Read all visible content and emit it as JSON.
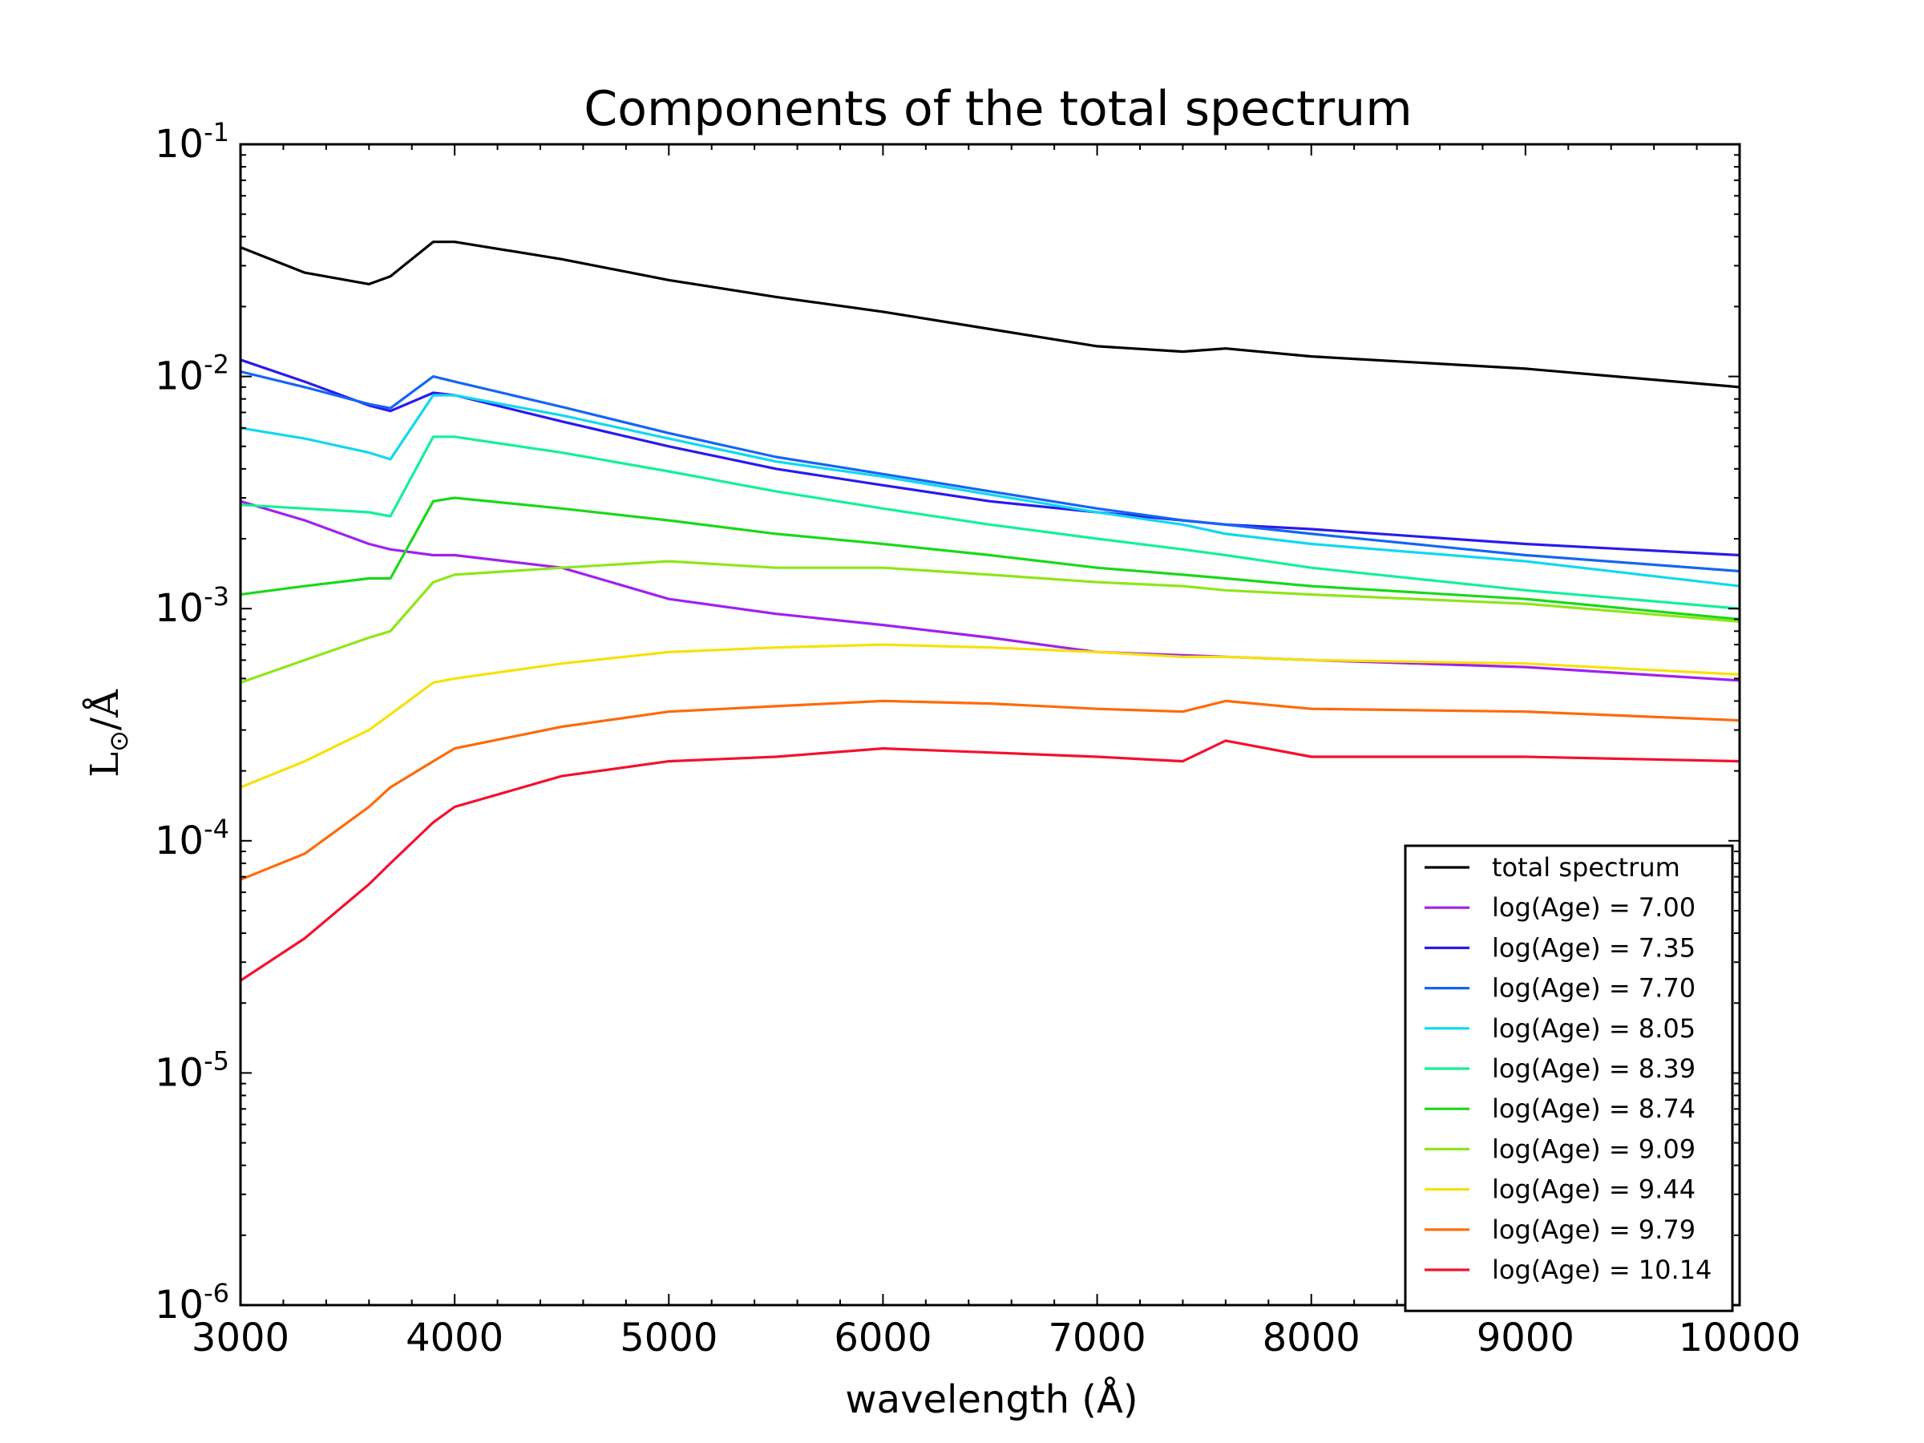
{
  "chart_data": {
    "type": "line",
    "title": "Components of the total spectrum",
    "xlabel": "wavelength (Å)",
    "ylabel": {
      "symbol": "L",
      "subscript": "⊙",
      "suffix": "/Å"
    },
    "xlim": [
      3000,
      10000
    ],
    "ylim": [
      1e-06,
      0.1
    ],
    "yscale": "log",
    "x_ticks": [
      3000,
      4000,
      5000,
      6000,
      7000,
      8000,
      9000,
      10000
    ],
    "y_ticks": [
      {
        "value": 1e-06,
        "base": "10",
        "exp": "-6"
      },
      {
        "value": 1e-05,
        "base": "10",
        "exp": "-5"
      },
      {
        "value": 0.0001,
        "base": "10",
        "exp": "-4"
      },
      {
        "value": 0.001,
        "base": "10",
        "exp": "-3"
      },
      {
        "value": 0.01,
        "base": "10",
        "exp": "-2"
      },
      {
        "value": 0.1,
        "base": "10",
        "exp": "-1"
      }
    ],
    "legend_position": "lower-right",
    "x": [
      3000,
      3300,
      3600,
      3700,
      3900,
      4000,
      4500,
      5000,
      5500,
      6000,
      6500,
      7000,
      7400,
      7600,
      8000,
      9000,
      10000
    ],
    "series": [
      {
        "name": "total spectrum",
        "color": "#000000",
        "values": [
          0.036,
          0.028,
          0.025,
          0.027,
          0.038,
          0.038,
          0.032,
          0.026,
          0.022,
          0.019,
          0.016,
          0.0135,
          0.0128,
          0.0132,
          0.0122,
          0.0108,
          0.009
        ]
      },
      {
        "name": "log(Age) = 7.00",
        "color": "#a020f0",
        "values": [
          0.0029,
          0.0024,
          0.0019,
          0.0018,
          0.0017,
          0.0017,
          0.0015,
          0.0011,
          0.00095,
          0.00085,
          0.00075,
          0.00065,
          0.00063,
          0.00062,
          0.0006,
          0.00056,
          0.00049
        ]
      },
      {
        "name": "log(Age) = 7.35",
        "color": "#2a1aee",
        "values": [
          0.0118,
          0.0095,
          0.0075,
          0.0071,
          0.0085,
          0.0083,
          0.0064,
          0.005,
          0.004,
          0.0034,
          0.0029,
          0.0026,
          0.0024,
          0.0023,
          0.0022,
          0.0019,
          0.0017
        ]
      },
      {
        "name": "log(Age) = 7.70",
        "color": "#1565f5",
        "values": [
          0.0105,
          0.009,
          0.0076,
          0.0073,
          0.01,
          0.0095,
          0.0074,
          0.0057,
          0.0045,
          0.0038,
          0.0032,
          0.0027,
          0.0024,
          0.0023,
          0.0021,
          0.0017,
          0.00145
        ]
      },
      {
        "name": "log(Age) = 8.05",
        "color": "#10d8f0",
        "values": [
          0.006,
          0.0054,
          0.0047,
          0.0044,
          0.0083,
          0.0083,
          0.0068,
          0.0054,
          0.0043,
          0.0037,
          0.0031,
          0.0026,
          0.0023,
          0.0021,
          0.0019,
          0.0016,
          0.00125
        ]
      },
      {
        "name": "log(Age) = 8.39",
        "color": "#14f09a",
        "values": [
          0.0028,
          0.0027,
          0.0026,
          0.0025,
          0.0055,
          0.0055,
          0.0047,
          0.0039,
          0.0032,
          0.0027,
          0.0023,
          0.002,
          0.0018,
          0.0017,
          0.0015,
          0.0012,
          0.001
        ]
      },
      {
        "name": "log(Age) = 8.74",
        "color": "#1ad81a",
        "values": [
          0.00115,
          0.00125,
          0.00135,
          0.00135,
          0.0029,
          0.003,
          0.0027,
          0.0024,
          0.0021,
          0.0019,
          0.0017,
          0.0015,
          0.0014,
          0.00135,
          0.00125,
          0.0011,
          0.0009
        ]
      },
      {
        "name": "log(Age) = 9.09",
        "color": "#8ee619",
        "values": [
          0.00048,
          0.0006,
          0.00075,
          0.0008,
          0.0013,
          0.0014,
          0.0015,
          0.0016,
          0.0015,
          0.0015,
          0.0014,
          0.0013,
          0.00125,
          0.0012,
          0.00115,
          0.00105,
          0.00088
        ]
      },
      {
        "name": "log(Age) = 9.44",
        "color": "#f7e10a",
        "values": [
          0.00017,
          0.00022,
          0.0003,
          0.00035,
          0.00048,
          0.0005,
          0.00058,
          0.00065,
          0.00068,
          0.0007,
          0.00068,
          0.00065,
          0.00062,
          0.00062,
          0.0006,
          0.00058,
          0.00052
        ]
      },
      {
        "name": "log(Age) = 9.79",
        "color": "#ff6a0a",
        "values": [
          6.8e-05,
          8.8e-05,
          0.00014,
          0.00017,
          0.00022,
          0.00025,
          0.00031,
          0.00036,
          0.00038,
          0.0004,
          0.00039,
          0.00037,
          0.00036,
          0.0004,
          0.00037,
          0.00036,
          0.00033
        ]
      },
      {
        "name": "log(Age) = 10.14",
        "color": "#f5102e",
        "values": [
          2.5e-05,
          3.8e-05,
          6.5e-05,
          8e-05,
          0.00012,
          0.00014,
          0.00019,
          0.00022,
          0.00023,
          0.00025,
          0.00024,
          0.00023,
          0.00022,
          0.00027,
          0.00023,
          0.00023,
          0.00022
        ]
      }
    ]
  }
}
